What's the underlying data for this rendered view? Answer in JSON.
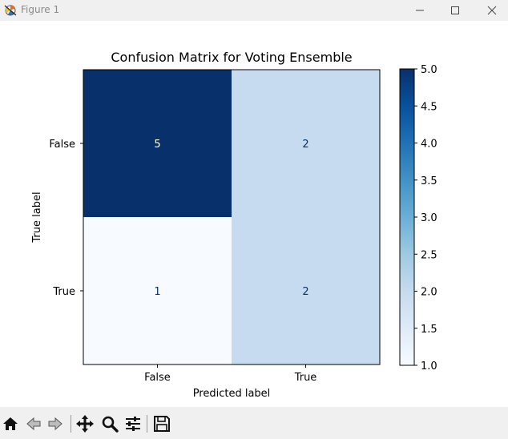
{
  "window": {
    "title": "Figure 1",
    "icons": [
      "matplotlib-icon",
      "minimize-icon",
      "maximize-icon",
      "close-icon"
    ]
  },
  "colors": {
    "titlebar_bg": "#f0f0f0",
    "toolbar_bg": "#f0f0f0",
    "cmap_low": "#f7fbff",
    "cmap_high": "#08306b",
    "text_dark": "#000000",
    "text_light": "#ffffff",
    "cell_text_dark": "#08306b"
  },
  "chart_data": {
    "type": "heatmap",
    "title": "Confusion Matrix for Voting Ensemble",
    "xlabel": "Predicted label",
    "ylabel": "True label",
    "x_categories": [
      "False",
      "True"
    ],
    "y_categories": [
      "False",
      "True"
    ],
    "values": [
      [
        5,
        2
      ],
      [
        1,
        2
      ]
    ],
    "cell_labels": [
      [
        "5",
        "2"
      ],
      [
        "1",
        "2"
      ]
    ],
    "colormap": "Blues",
    "colorbar": {
      "min": 1.0,
      "max": 5.0,
      "ticks": [
        1.0,
        1.5,
        2.0,
        2.5,
        3.0,
        3.5,
        4.0,
        4.5,
        5.0
      ],
      "tick_labels": [
        "1.0",
        "1.5",
        "2.0",
        "2.5",
        "3.0",
        "3.5",
        "4.0",
        "4.5",
        "5.0"
      ]
    },
    "grid": false
  },
  "toolbar": {
    "tools": [
      "home-icon",
      "back-icon",
      "forward-icon",
      "pan-icon",
      "zoom-icon",
      "configure-subplots-icon",
      "save-icon"
    ]
  }
}
